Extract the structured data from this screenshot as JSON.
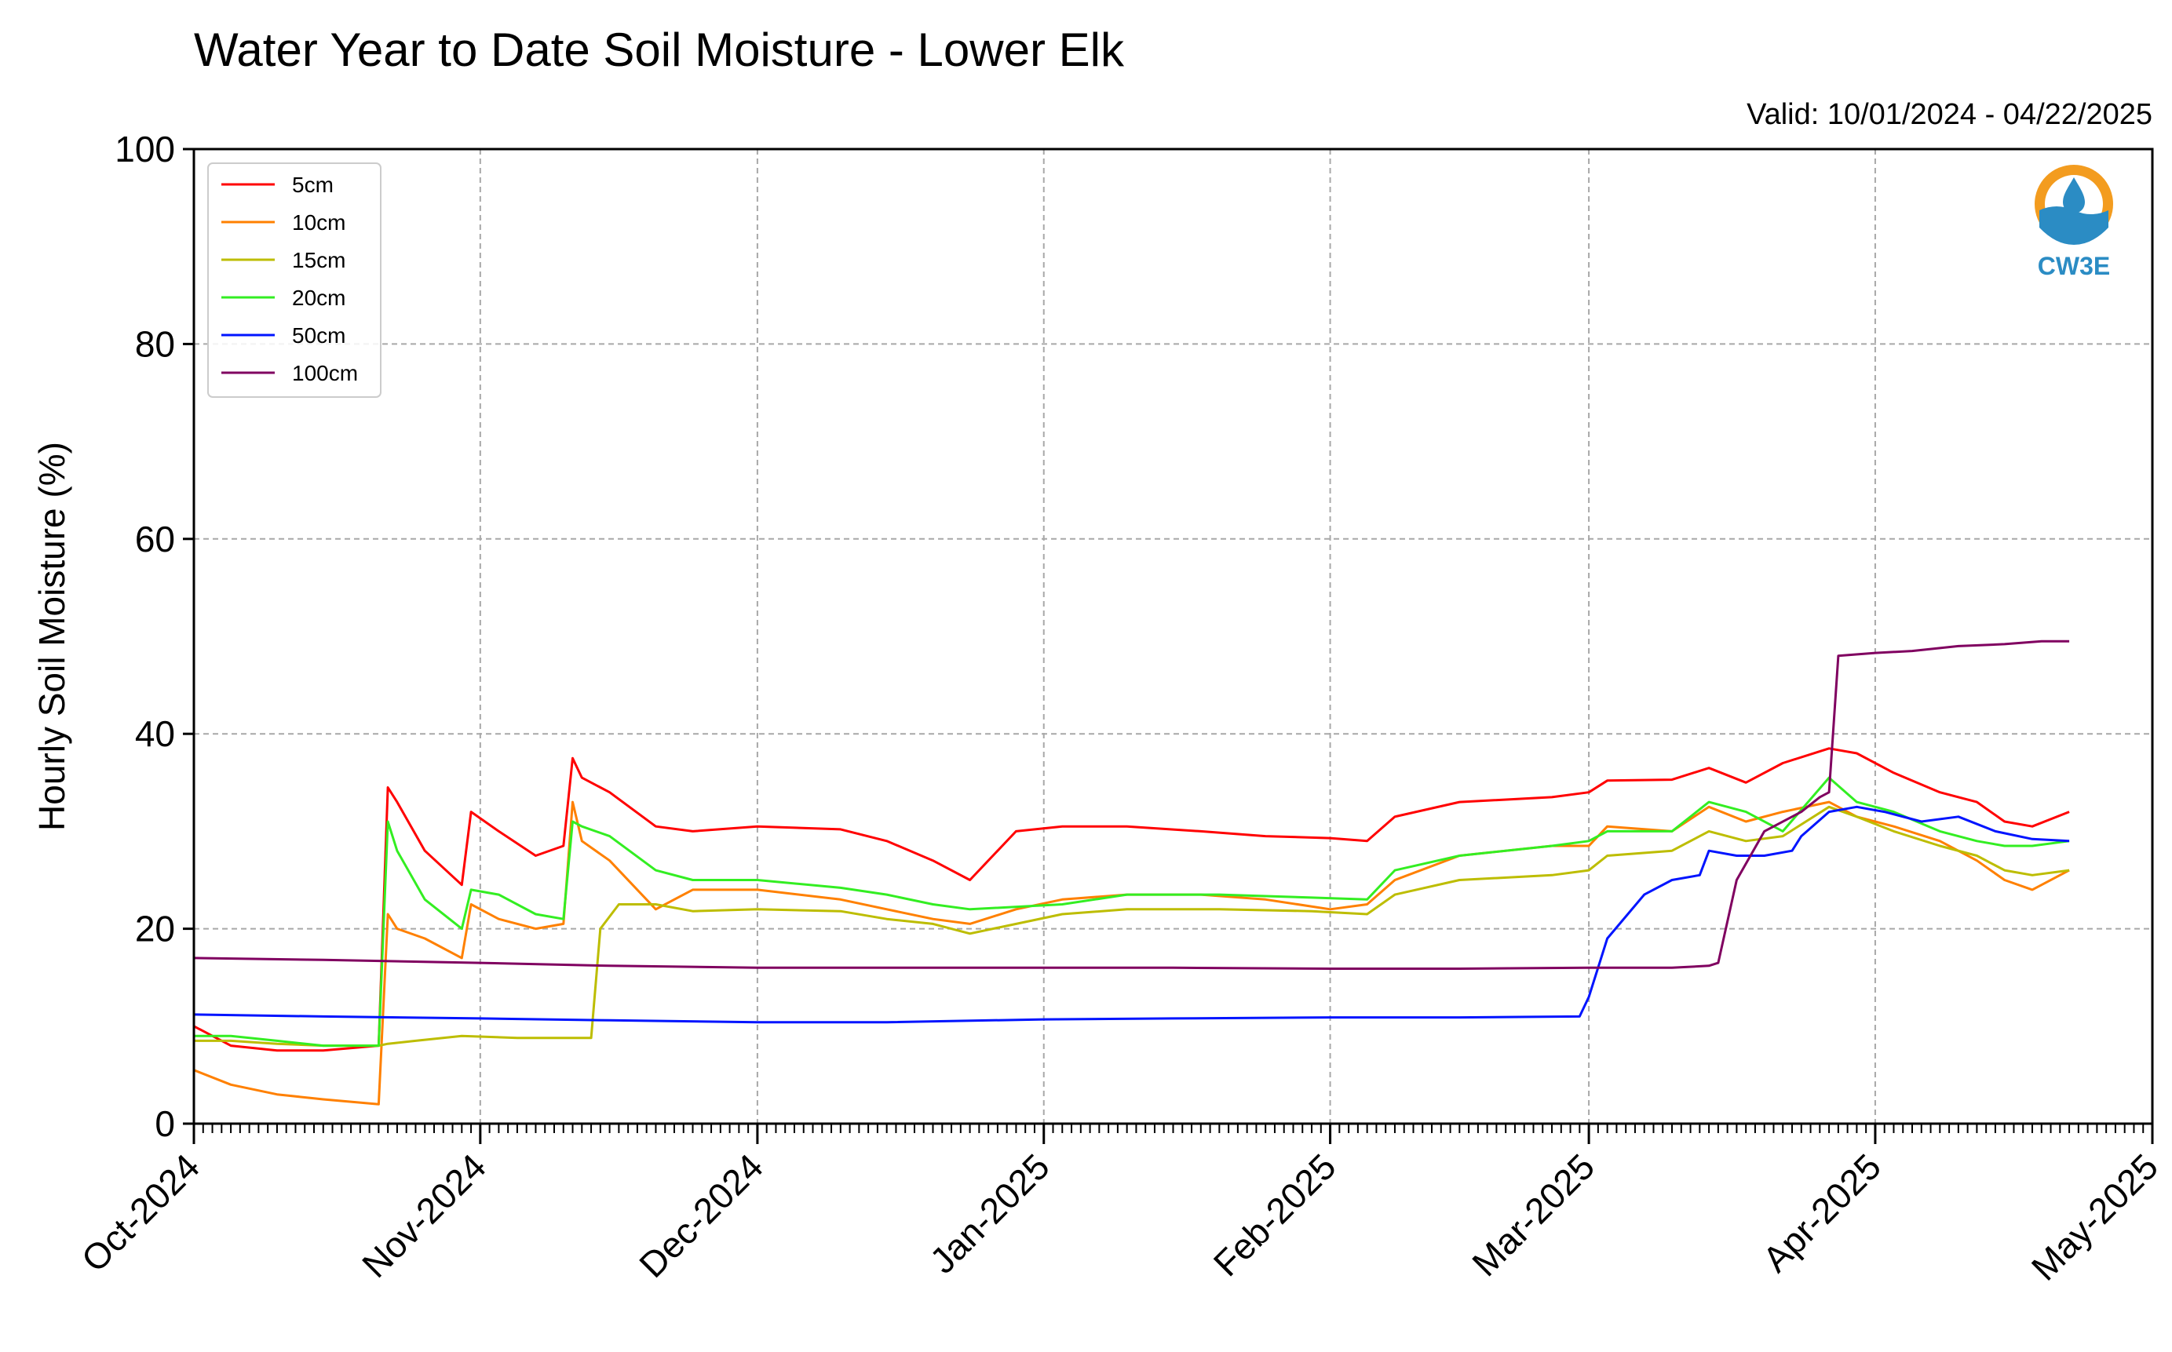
{
  "chart_data": {
    "type": "line",
    "title": "Water Year to Date Soil Moisture - Lower Elk",
    "subtitle": "Valid: 10/01/2024 - 04/22/2025",
    "xlabel": "",
    "ylabel": "Hourly Soil Moisture (%)",
    "ylim": [
      0,
      100
    ],
    "xlim": [
      "2024-10-01",
      "2025-05-01"
    ],
    "yticks": [
      "0",
      "20",
      "40",
      "60",
      "80",
      "100"
    ],
    "xticks": [
      {
        "date": "2024-10-01",
        "label": "Oct-2024"
      },
      {
        "date": "2024-11-01",
        "label": "Nov-2024"
      },
      {
        "date": "2024-12-01",
        "label": "Dec-2024"
      },
      {
        "date": "2025-01-01",
        "label": "Jan-2025"
      },
      {
        "date": "2025-02-01",
        "label": "Feb-2025"
      },
      {
        "date": "2025-03-01",
        "label": "Mar-2025"
      },
      {
        "date": "2025-04-01",
        "label": "Apr-2025"
      },
      {
        "date": "2025-05-01",
        "label": "May-2025"
      }
    ],
    "grid": true,
    "legend_position": "top-left",
    "series": [
      {
        "name": "5cm",
        "color": "#ff0000",
        "x": [
          "2024-10-01",
          "2024-10-05",
          "2024-10-10",
          "2024-10-15",
          "2024-10-21",
          "2024-10-22",
          "2024-10-23",
          "2024-10-26",
          "2024-10-30",
          "2024-10-31",
          "2024-11-03",
          "2024-11-07",
          "2024-11-10",
          "2024-11-11",
          "2024-11-12",
          "2024-11-15",
          "2024-11-20",
          "2024-11-24",
          "2024-12-01",
          "2024-12-10",
          "2024-12-15",
          "2024-12-20",
          "2024-12-24",
          "2024-12-29",
          "2025-01-03",
          "2025-01-10",
          "2025-01-18",
          "2025-01-25",
          "2025-02-01",
          "2025-02-05",
          "2025-02-08",
          "2025-02-15",
          "2025-02-25",
          "2025-03-01",
          "2025-03-03",
          "2025-03-10",
          "2025-03-14",
          "2025-03-18",
          "2025-03-22",
          "2025-03-27",
          "2025-03-30",
          "2025-04-03",
          "2025-04-08",
          "2025-04-12",
          "2025-04-15",
          "2025-04-18",
          "2025-04-22"
        ],
        "y": [
          10,
          8,
          7.5,
          7.5,
          8,
          34.5,
          33,
          28,
          24.5,
          32,
          30,
          27.5,
          28.5,
          37.5,
          35.5,
          34,
          30.5,
          30,
          30.5,
          30.2,
          29,
          27,
          25,
          30,
          30.5,
          30.5,
          30,
          29.5,
          29.3,
          29,
          31.5,
          33,
          33.5,
          34,
          35.2,
          35.3,
          36.5,
          35,
          37,
          38.5,
          38,
          36,
          34,
          33,
          31,
          30.5,
          32
        ]
      },
      {
        "name": "10cm",
        "color": "#ff8000",
        "x": [
          "2024-10-01",
          "2024-10-05",
          "2024-10-10",
          "2024-10-15",
          "2024-10-21",
          "2024-10-22",
          "2024-10-23",
          "2024-10-26",
          "2024-10-30",
          "2024-10-31",
          "2024-11-03",
          "2024-11-07",
          "2024-11-10",
          "2024-11-11",
          "2024-11-12",
          "2024-11-15",
          "2024-11-20",
          "2024-11-24",
          "2024-12-01",
          "2024-12-10",
          "2024-12-15",
          "2024-12-20",
          "2024-12-24",
          "2024-12-29",
          "2025-01-03",
          "2025-01-10",
          "2025-01-18",
          "2025-01-25",
          "2025-02-01",
          "2025-02-05",
          "2025-02-08",
          "2025-02-15",
          "2025-02-25",
          "2025-03-01",
          "2025-03-03",
          "2025-03-10",
          "2025-03-14",
          "2025-03-18",
          "2025-03-22",
          "2025-03-27",
          "2025-03-30",
          "2025-04-03",
          "2025-04-08",
          "2025-04-12",
          "2025-04-15",
          "2025-04-18",
          "2025-04-22"
        ],
        "y": [
          5.5,
          4,
          3,
          2.5,
          2,
          21.5,
          20,
          19,
          17,
          22.5,
          21,
          20,
          20.5,
          33,
          29,
          27,
          22,
          24,
          24,
          23,
          22,
          21,
          20.5,
          22,
          23,
          23.5,
          23.5,
          23,
          22,
          22.5,
          25,
          27.5,
          28.5,
          28.5,
          30.5,
          30,
          32.5,
          31,
          32,
          33,
          31.5,
          30.5,
          29,
          27,
          25,
          24,
          26
        ]
      },
      {
        "name": "15cm",
        "color": "#bdbd00",
        "x": [
          "2024-10-01",
          "2024-10-05",
          "2024-10-10",
          "2024-10-15",
          "2024-10-21",
          "2024-10-22",
          "2024-10-25",
          "2024-10-30",
          "2024-11-05",
          "2024-11-13",
          "2024-11-14",
          "2024-11-16",
          "2024-11-20",
          "2024-11-24",
          "2024-12-01",
          "2024-12-10",
          "2024-12-15",
          "2024-12-20",
          "2024-12-24",
          "2025-01-03",
          "2025-01-10",
          "2025-01-20",
          "2025-01-30",
          "2025-02-05",
          "2025-02-08",
          "2025-02-15",
          "2025-02-25",
          "2025-03-01",
          "2025-03-03",
          "2025-03-10",
          "2025-03-14",
          "2025-03-18",
          "2025-03-22",
          "2025-03-27",
          "2025-03-30",
          "2025-04-03",
          "2025-04-08",
          "2025-04-12",
          "2025-04-15",
          "2025-04-18",
          "2025-04-22"
        ],
        "y": [
          8.5,
          8.5,
          8.2,
          8,
          8,
          8.2,
          8.5,
          9,
          8.8,
          8.8,
          20,
          22.5,
          22.5,
          21.8,
          22,
          21.8,
          21,
          20.5,
          19.5,
          21.5,
          22,
          22,
          21.8,
          21.5,
          23.5,
          25,
          25.5,
          26,
          27.5,
          28,
          30,
          29,
          29.5,
          32.5,
          31.5,
          30,
          28.5,
          27.5,
          26,
          25.5,
          26
        ]
      },
      {
        "name": "20cm",
        "color": "#33ee22",
        "x": [
          "2024-10-01",
          "2024-10-05",
          "2024-10-10",
          "2024-10-15",
          "2024-10-21",
          "2024-10-22",
          "2024-10-23",
          "2024-10-26",
          "2024-10-30",
          "2024-10-31",
          "2024-11-03",
          "2024-11-07",
          "2024-11-10",
          "2024-11-11",
          "2024-11-12",
          "2024-11-15",
          "2024-11-20",
          "2024-11-24",
          "2024-12-01",
          "2024-12-10",
          "2024-12-15",
          "2024-12-20",
          "2024-12-24",
          "2025-01-03",
          "2025-01-10",
          "2025-01-20",
          "2025-01-30",
          "2025-02-05",
          "2025-02-08",
          "2025-02-15",
          "2025-02-25",
          "2025-03-01",
          "2025-03-03",
          "2025-03-10",
          "2025-03-14",
          "2025-03-18",
          "2025-03-22",
          "2025-03-27",
          "2025-03-30",
          "2025-04-03",
          "2025-04-08",
          "2025-04-12",
          "2025-04-15",
          "2025-04-18",
          "2025-04-22"
        ],
        "y": [
          9,
          9,
          8.5,
          8,
          8,
          31,
          28,
          23,
          20,
          24,
          23.5,
          21.5,
          21,
          31,
          30.5,
          29.5,
          26,
          25,
          25,
          24.2,
          23.5,
          22.5,
          22,
          22.5,
          23.5,
          23.5,
          23.2,
          23,
          26,
          27.5,
          28.5,
          29,
          30,
          30,
          33,
          32,
          30,
          35.5,
          33,
          32,
          30,
          29,
          28.5,
          28.5,
          29
        ]
      },
      {
        "name": "50cm",
        "color": "#0014ff",
        "x": [
          "2024-10-01",
          "2024-10-15",
          "2024-11-01",
          "2024-11-15",
          "2024-12-01",
          "2024-12-15",
          "2025-01-01",
          "2025-01-15",
          "2025-02-01",
          "2025-02-15",
          "2025-02-28",
          "2025-03-01",
          "2025-03-03",
          "2025-03-07",
          "2025-03-10",
          "2025-03-13",
          "2025-03-14",
          "2025-03-17",
          "2025-03-20",
          "2025-03-23",
          "2025-03-24",
          "2025-03-27",
          "2025-03-30",
          "2025-04-02",
          "2025-04-06",
          "2025-04-10",
          "2025-04-14",
          "2025-04-18",
          "2025-04-22"
        ],
        "y": [
          11.2,
          11,
          10.8,
          10.6,
          10.4,
          10.4,
          10.7,
          10.8,
          10.9,
          10.9,
          11,
          13,
          19,
          23.5,
          25,
          25.5,
          28,
          27.5,
          27.5,
          28,
          29.5,
          32,
          32.5,
          32,
          31,
          31.5,
          30,
          29.2,
          29
        ]
      },
      {
        "name": "100cm",
        "color": "#800060",
        "x": [
          "2024-10-01",
          "2024-10-15",
          "2024-11-01",
          "2024-11-15",
          "2024-12-01",
          "2024-12-15",
          "2025-01-01",
          "2025-01-15",
          "2025-02-01",
          "2025-02-15",
          "2025-03-01",
          "2025-03-10",
          "2025-03-14",
          "2025-03-15",
          "2025-03-17",
          "2025-03-20",
          "2025-03-24",
          "2025-03-26",
          "2025-03-27",
          "2025-03-28",
          "2025-04-01",
          "2025-04-05",
          "2025-04-10",
          "2025-04-15",
          "2025-04-19",
          "2025-04-22"
        ],
        "y": [
          17,
          16.8,
          16.5,
          16.2,
          16,
          16,
          16,
          16,
          15.9,
          15.9,
          16,
          16,
          16.2,
          16.5,
          25,
          30,
          32,
          33.5,
          34,
          48,
          48.3,
          48.5,
          49,
          49.2,
          49.5,
          49.5
        ]
      }
    ]
  },
  "logo": {
    "text": "CW3E",
    "orange": "#f39c1f",
    "blue": "#2b8cc4"
  }
}
